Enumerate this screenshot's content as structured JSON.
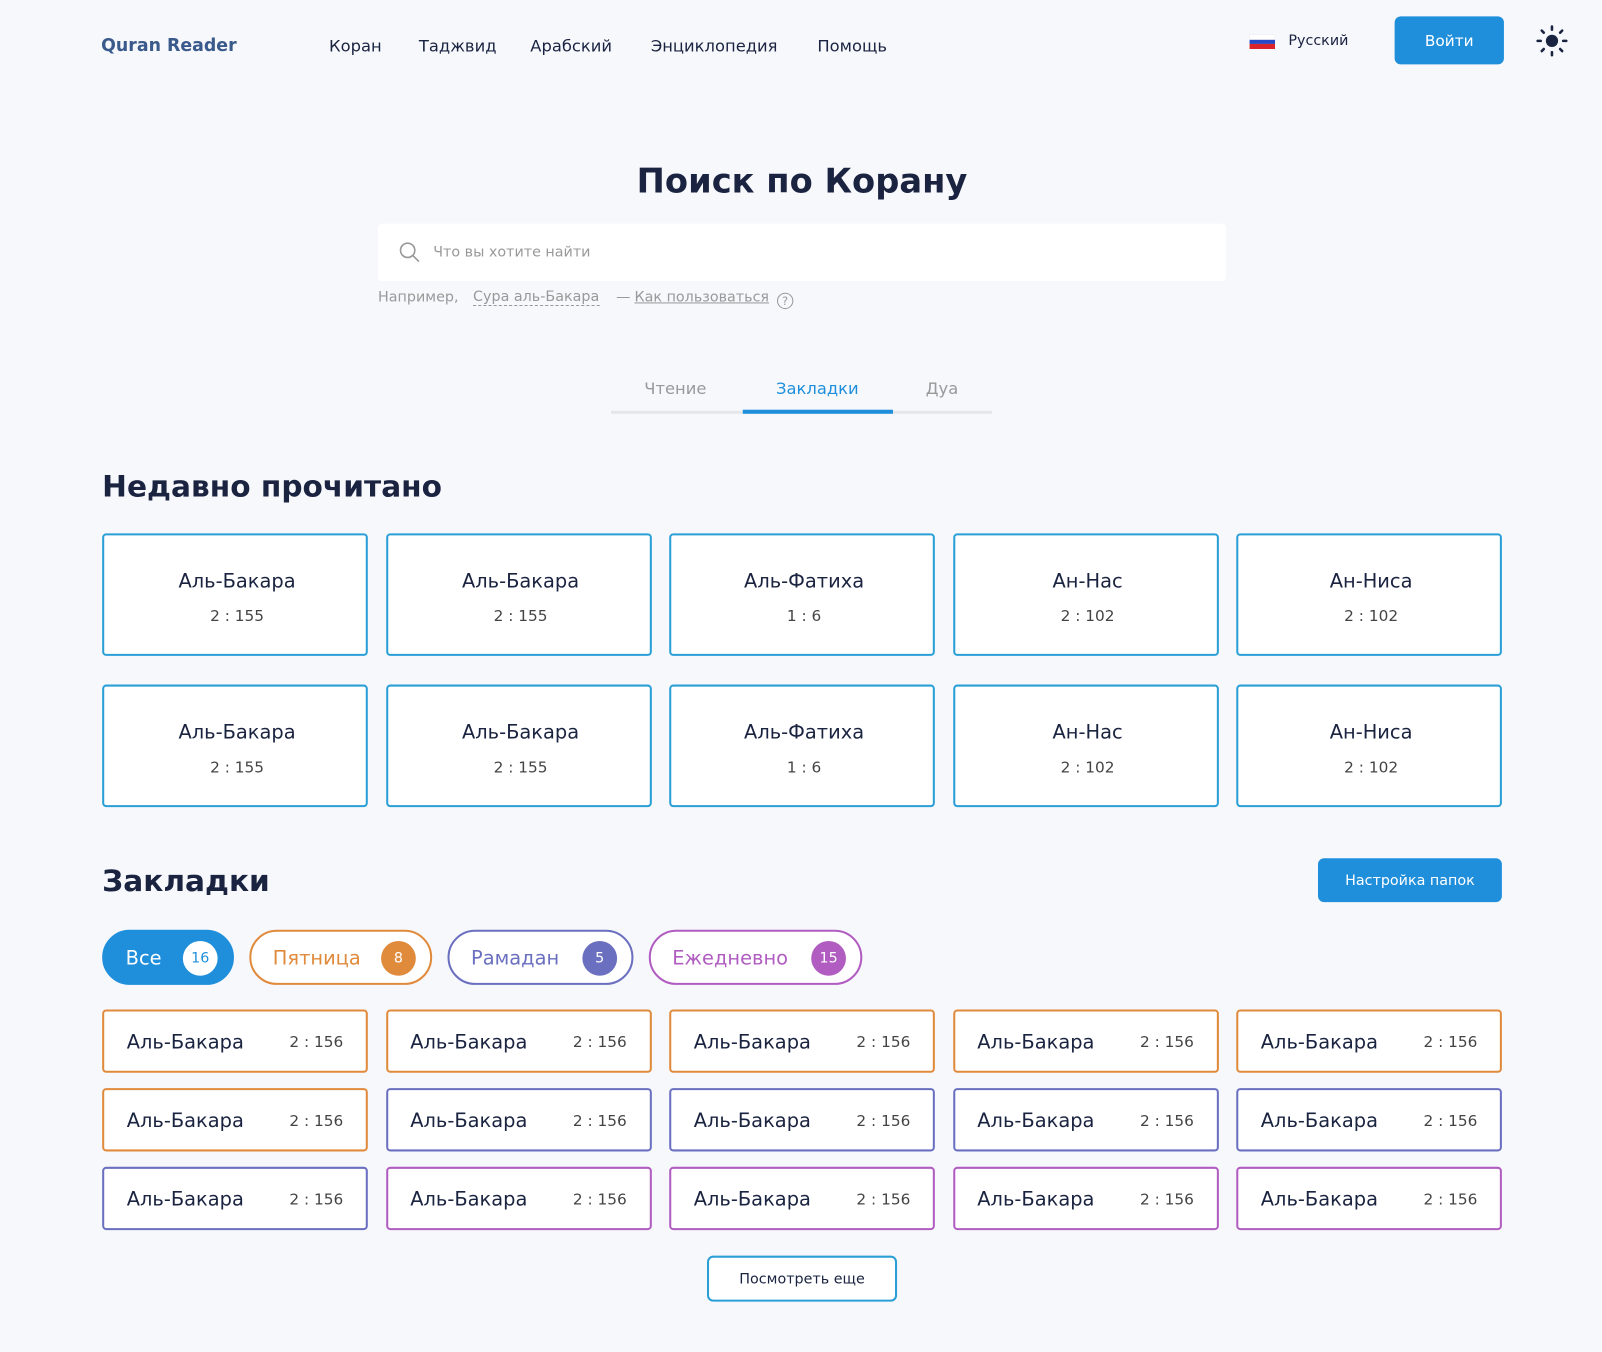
{
  "nav": {
    "logo": "Quran Reader",
    "links": [
      "Коран",
      "Таджвид",
      "Арабский",
      "Энциклопедия",
      "Помощь"
    ],
    "language": "Русский",
    "login": "Войти"
  },
  "search": {
    "title": "Поиск по Корану",
    "placeholder": "Что вы хотите найти",
    "hint_prefix": "Например,",
    "hint_example": "Сура аль-Бакара",
    "hint_dash": "—",
    "hint_help": "Как пользоваться"
  },
  "tabs": {
    "items": [
      "Чтение",
      "Закладки",
      "Дуа"
    ],
    "active": 1
  },
  "recent": {
    "title": "Недавно прочитано",
    "color": "#2a9fd6",
    "items": [
      {
        "name": "Аль-Бакара",
        "ref": "2 : 155"
      },
      {
        "name": "Аль-Бакара",
        "ref": "2 : 155"
      },
      {
        "name": "Аль-Фатиха",
        "ref": "1 : 6"
      },
      {
        "name": "Ан-Нас",
        "ref": "2 : 102"
      },
      {
        "name": "Ан-Ниса",
        "ref": "2 : 102"
      },
      {
        "name": "Аль-Бакара",
        "ref": "2 : 155"
      },
      {
        "name": "Аль-Бакара",
        "ref": "2 : 155"
      },
      {
        "name": "Аль-Фатиха",
        "ref": "1 : 6"
      },
      {
        "name": "Ан-Нас",
        "ref": "2 : 102"
      },
      {
        "name": "Ан-Ниса",
        "ref": "2 : 102"
      }
    ]
  },
  "bookmarks": {
    "title": "Закладки",
    "settings": "Настройка папок",
    "more": "Посмотреть еще",
    "folders": [
      {
        "name": "Все",
        "count": 16,
        "color": "#1f8fdc"
      },
      {
        "name": "Пятница",
        "count": 8,
        "color": "#e08a3c"
      },
      {
        "name": "Рамадан",
        "count": 5,
        "color": "#6a6fbf"
      },
      {
        "name": "Ежедневно",
        "count": 15,
        "color": "#b05cc0"
      }
    ],
    "items": [
      {
        "name": "Аль-Бакара",
        "ref": "2 : 156",
        "color": "#e08a3c"
      },
      {
        "name": "Аль-Бакара",
        "ref": "2 : 156",
        "color": "#e08a3c"
      },
      {
        "name": "Аль-Бакара",
        "ref": "2 : 156",
        "color": "#e08a3c"
      },
      {
        "name": "Аль-Бакара",
        "ref": "2 : 156",
        "color": "#e08a3c"
      },
      {
        "name": "Аль-Бакара",
        "ref": "2 : 156",
        "color": "#e08a3c"
      },
      {
        "name": "Аль-Бакара",
        "ref": "2 : 156",
        "color": "#e08a3c"
      },
      {
        "name": "Аль-Бакара",
        "ref": "2 : 156",
        "color": "#6a6fbf"
      },
      {
        "name": "Аль-Бакара",
        "ref": "2 : 156",
        "color": "#6a6fbf"
      },
      {
        "name": "Аль-Бакара",
        "ref": "2 : 156",
        "color": "#6a6fbf"
      },
      {
        "name": "Аль-Бакара",
        "ref": "2 : 156",
        "color": "#6a6fbf"
      },
      {
        "name": "Аль-Бакара",
        "ref": "2 : 156",
        "color": "#6a6fbf"
      },
      {
        "name": "Аль-Бакара",
        "ref": "2 : 156",
        "color": "#b05cc0"
      },
      {
        "name": "Аль-Бакара",
        "ref": "2 : 156",
        "color": "#b05cc0"
      },
      {
        "name": "Аль-Бакара",
        "ref": "2 : 156",
        "color": "#b05cc0"
      },
      {
        "name": "Аль-Бакара",
        "ref": "2 : 156",
        "color": "#b05cc0"
      }
    ]
  }
}
